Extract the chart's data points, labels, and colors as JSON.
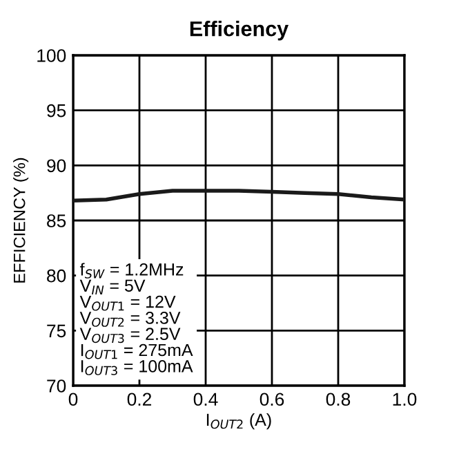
{
  "chart_data": {
    "type": "line",
    "title": "Efficiency",
    "xlabel": "I$_{OUT2}$ (A)",
    "ylabel": "EFFICIENCY (%)",
    "x": [
      0,
      0.1,
      0.2,
      0.3,
      0.4,
      0.5,
      0.6,
      0.7,
      0.8,
      0.9,
      1.0
    ],
    "series": [
      {
        "color": "#1a1a1a",
        "values": [
          86.8,
          86.9,
          87.4,
          87.7,
          87.7,
          87.7,
          87.6,
          87.5,
          87.4,
          87.1,
          86.9
        ]
      }
    ],
    "xlim": [
      0,
      1
    ],
    "xticks": [
      0,
      0.2,
      0.4,
      0.6,
      0.8,
      {
        "value": 1,
        "label": "1.0"
      }
    ],
    "ylim": [
      70,
      100
    ],
    "yticks": [
      70,
      75,
      80,
      85,
      90,
      95,
      100
    ],
    "grid": true,
    "line_style": "solid",
    "marker": "none",
    "annotations": [
      "f$_{SW}$ = 1.2MHz",
      "V$_{IN}$ = 5V",
      "V$_{OUT1}$ = 12V",
      "V$_{OUT2}$ = 3.3V",
      "V$_{OUT3}$ = 2.5V",
      "I$_{OUT1}$ = 275mA",
      "I$_{OUT3}$ = 100mA"
    ]
  }
}
